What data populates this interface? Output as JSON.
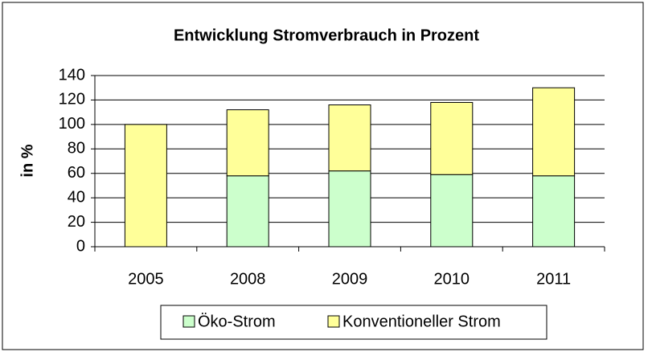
{
  "chart_data": {
    "type": "stacked_bar",
    "title": "Entwicklung Stromverbrauch in Prozent",
    "y_label": "in %",
    "categories": [
      "2005",
      "2008",
      "2009",
      "2010",
      "2011"
    ],
    "series": [
      {
        "name": "Öko-Strom",
        "color": "#ccffcc",
        "values": [
          0,
          58,
          62,
          59,
          58
        ]
      },
      {
        "name": "Konventioneller Strom",
        "color": "#ffff99",
        "values": [
          100,
          54,
          54,
          59,
          72
        ]
      }
    ],
    "ylim": [
      0,
      140
    ],
    "yticks": [
      0,
      20,
      40,
      60,
      80,
      100,
      120,
      140
    ],
    "grid": true,
    "legend": "bottom"
  }
}
